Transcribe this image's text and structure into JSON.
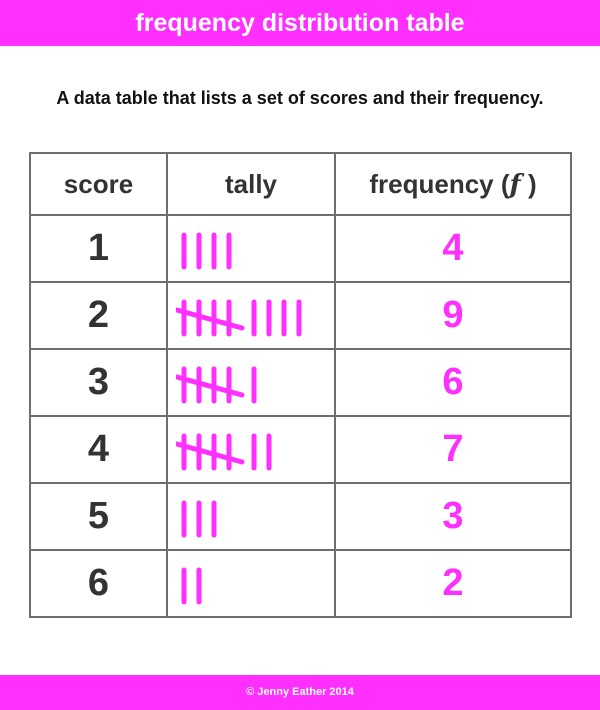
{
  "header": {
    "title": "frequency distribution table"
  },
  "subtitle": "A data table that lists a set of scores and their frequency.",
  "table": {
    "headers": {
      "score": "score",
      "tally": "tally",
      "frequency": "frequency (",
      "frequency_symbol": "ƒ",
      "frequency_close": ")"
    },
    "rows": [
      {
        "score": "1",
        "tally": 4,
        "frequency": "4"
      },
      {
        "score": "2",
        "tally": 9,
        "frequency": "9"
      },
      {
        "score": "3",
        "tally": 6,
        "frequency": "6"
      },
      {
        "score": "4",
        "tally": 7,
        "frequency": "7"
      },
      {
        "score": "5",
        "tally": 3,
        "frequency": "3"
      },
      {
        "score": "6",
        "tally": 2,
        "frequency": "2"
      }
    ]
  },
  "footer": {
    "copyright": "© Jenny Eather 2014"
  },
  "colors": {
    "accent": "#ff2fff",
    "text": "#333333",
    "border": "#6e6e6e"
  }
}
